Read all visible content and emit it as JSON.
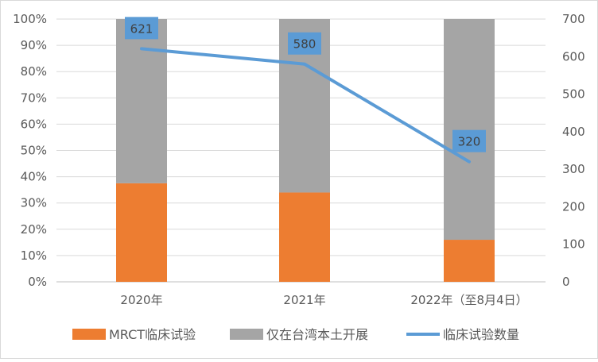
{
  "chart_data": {
    "type": "bar",
    "stacked": true,
    "percent_stacked": true,
    "categories": [
      "2020年",
      "2021年",
      "2022年（至8月4日）"
    ],
    "series": [
      {
        "name": "MRCT临床试验",
        "kind": "bar",
        "axis": "left",
        "color": "#ED7D31",
        "values": [
          0.375,
          0.34,
          0.16
        ]
      },
      {
        "name": "仅在台湾本土开展",
        "kind": "bar",
        "axis": "left",
        "color": "#A5A5A5",
        "values": [
          0.625,
          0.66,
          0.84
        ]
      },
      {
        "name": "临床试验数量",
        "kind": "line",
        "axis": "right",
        "color": "#5B9BD5",
        "values": [
          621,
          580,
          320
        ],
        "data_labels": [
          "621",
          "580",
          "320"
        ]
      }
    ],
    "y_left": {
      "range": [
        0,
        1
      ],
      "ticks": [
        "0%",
        "10%",
        "20%",
        "30%",
        "40%",
        "50%",
        "60%",
        "70%",
        "80%",
        "90%",
        "100%"
      ]
    },
    "y_right": {
      "range": [
        0,
        700
      ],
      "ticks": [
        "0",
        "100",
        "200",
        "300",
        "400",
        "500",
        "600",
        "700"
      ]
    },
    "grid": true,
    "legend_position": "bottom"
  }
}
